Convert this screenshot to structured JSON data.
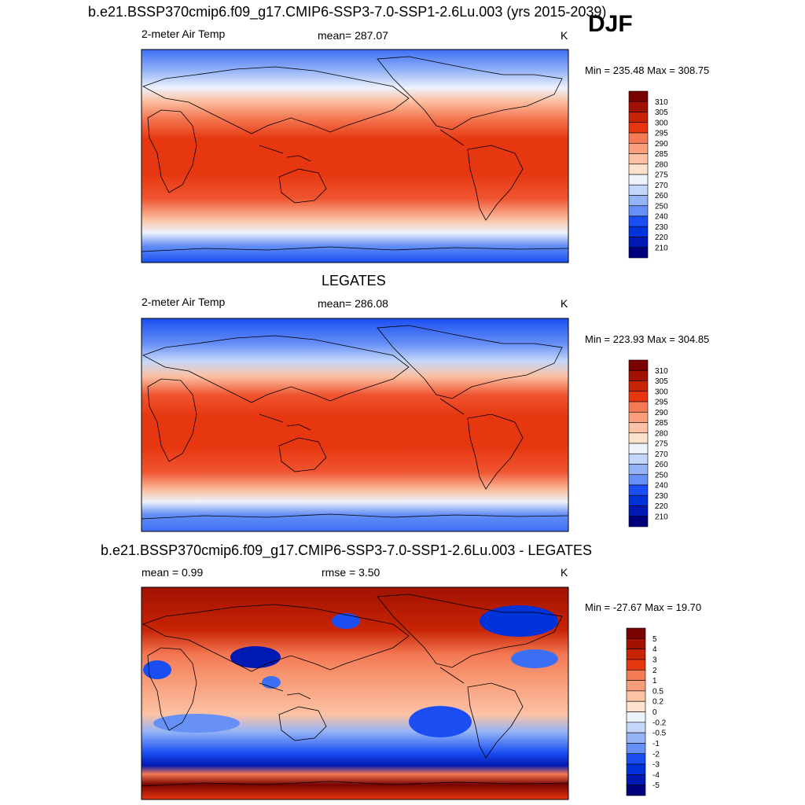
{
  "season": "DJF",
  "colors": {
    "temp_scale": [
      "#00007f",
      "#0019b2",
      "#0032d9",
      "#1a4ef2",
      "#3d6ff5",
      "#6690f5",
      "#95b4f7",
      "#c4d7fa",
      "#eef2fc",
      "#fde1cc",
      "#fbc2a5",
      "#f89e7b",
      "#f47a54",
      "#ef5430",
      "#e63710",
      "#c72405",
      "#a11202",
      "#7a0200"
    ],
    "diff_scale": [
      "#00007f",
      "#0019b2",
      "#0032d9",
      "#1a4ef2",
      "#3d6ff5",
      "#6690f5",
      "#95b4f7",
      "#c4d7fa",
      "#eef2fc",
      "#fde1cc",
      "#fbc2a5",
      "#f89e7b",
      "#f47a54",
      "#ef5430",
      "#e63710",
      "#c72405",
      "#a11202",
      "#7a0200"
    ]
  },
  "panels": [
    {
      "title": "b.e21.BSSP370cmip6.f09_g17.CMIP6-SSP3-7.0-SSP1-2.6Lu.003 (yrs 2015-2039)",
      "left_label": "2-meter Air Temp",
      "center_label": "mean= 287.07",
      "units": "K",
      "minmax": "Min = 235.48 Max = 308.75",
      "colorbar_labels": [
        "310",
        "305",
        "300",
        "295",
        "290",
        "285",
        "280",
        "275",
        "270",
        "260",
        "250",
        "240",
        "230",
        "220",
        "210"
      ]
    },
    {
      "title": "LEGATES",
      "left_label": "2-meter Air Temp",
      "center_label": "mean= 286.08",
      "units": "K",
      "minmax": "Min = 223.93 Max = 304.85",
      "colorbar_labels": [
        "310",
        "305",
        "300",
        "295",
        "290",
        "285",
        "280",
        "275",
        "270",
        "260",
        "250",
        "240",
        "230",
        "220",
        "210"
      ]
    },
    {
      "title": "b.e21.BSSP370cmip6.f09_g17.CMIP6-SSP3-7.0-SSP1-2.6Lu.003 - LEGATES",
      "left_label": "mean =   0.99",
      "center_label": "rmse =   3.50",
      "units": "K",
      "minmax": "Min = -27.67 Max =  19.70",
      "colorbar_labels": [
        "5",
        "4",
        "3",
        "2",
        "1",
        "0.5",
        "0.2",
        "0",
        "-0.2",
        "-0.5",
        "-1",
        "-2",
        "-3",
        "-4",
        "-5"
      ]
    }
  ],
  "chart_data": [
    {
      "type": "heatmap",
      "title": "b.e21.BSSP370cmip6.f09_g17.CMIP6-SSP3-7.0-SSP1-2.6Lu.003 (yrs 2015-2039)",
      "variable": "2-meter Air Temp",
      "units": "K",
      "mean": 287.07,
      "min": 235.48,
      "max": 308.75,
      "colorbar_levels": [
        210,
        220,
        230,
        240,
        250,
        260,
        270,
        275,
        280,
        285,
        290,
        295,
        300,
        305,
        310
      ]
    },
    {
      "type": "heatmap",
      "title": "LEGATES",
      "variable": "2-meter Air Temp",
      "units": "K",
      "mean": 286.08,
      "min": 223.93,
      "max": 304.85,
      "colorbar_levels": [
        210,
        220,
        230,
        240,
        250,
        260,
        270,
        275,
        280,
        285,
        290,
        295,
        300,
        305,
        310
      ]
    },
    {
      "type": "heatmap",
      "title": "b.e21.BSSP370cmip6.f09_g17.CMIP6-SSP3-7.0-SSP1-2.6Lu.003 - LEGATES",
      "units": "K",
      "mean": 0.99,
      "rmse": 3.5,
      "min": -27.67,
      "max": 19.7,
      "colorbar_levels": [
        -5,
        -4,
        -3,
        -2,
        -1,
        -0.5,
        -0.2,
        0,
        0.2,
        0.5,
        1,
        2,
        3,
        4,
        5
      ]
    }
  ]
}
